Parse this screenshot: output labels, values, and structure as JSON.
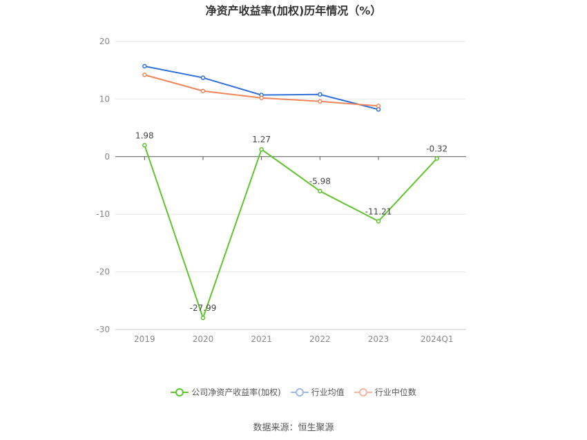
{
  "title": "净资产收益率(加权)历年情况（%）",
  "source": "数据来源：恒生聚源",
  "chart_data": {
    "type": "line",
    "title": "净资产收益率(加权)历年情况（%）",
    "xlabel": "",
    "ylabel": "",
    "categories": [
      "2019",
      "2020",
      "2021",
      "2022",
      "2023",
      "2024Q1"
    ],
    "ylim": [
      -30,
      20
    ],
    "yticks": [
      20,
      10,
      0,
      -10,
      -20,
      -30
    ],
    "grid": true,
    "legend_position": "bottom",
    "series": [
      {
        "name": "公司净资产收益率(加权)",
        "color": "#5ec42c",
        "values": [
          1.98,
          -27.99,
          1.27,
          -5.98,
          -11.21,
          -0.32
        ],
        "labels": [
          "1.98",
          "-27.99",
          "1.27",
          "-5.98",
          "-11.21",
          "-0.32"
        ]
      },
      {
        "name": "行业均值",
        "color": "#2f6fd6",
        "values": [
          15.7,
          13.7,
          10.7,
          10.8,
          8.2,
          null
        ]
      },
      {
        "name": "行业中位数",
        "color": "#f0845a",
        "values": [
          14.2,
          11.4,
          10.2,
          9.6,
          8.8,
          null
        ]
      }
    ]
  }
}
